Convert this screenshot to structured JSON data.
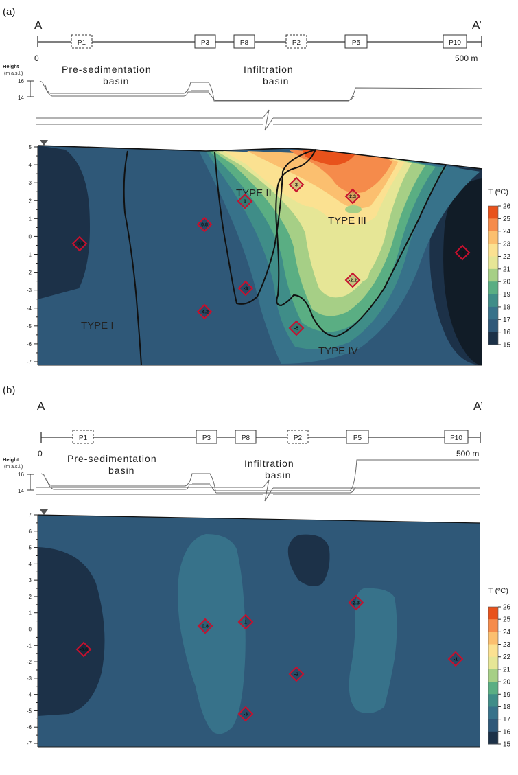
{
  "colors": {
    "c15": "#111c27",
    "c16": "#1c3148",
    "c17": "#2f5878",
    "c18": "#37728a",
    "c19": "#3f8d88",
    "c20": "#5aae83",
    "c21": "#a6cf86",
    "c22": "#e6e696",
    "c23": "#fbe191",
    "c24": "#fbbf6f",
    "c25": "#f58b4b",
    "c26": "#e8521b",
    "outline": "#111111",
    "diamond": "#c8102e"
  },
  "panels": [
    {
      "label": "(a)",
      "start": "A",
      "end": "A’",
      "origin_label": "0",
      "distance_label": "500 m",
      "height_title": "Height",
      "height_units": "(m a.s.l.)",
      "height_ticks": [
        "16",
        "14"
      ],
      "basin_left_line1": "Pre-sedimentation",
      "basin_left_line2": "basin",
      "basin_right_line1": "Infiltration",
      "basin_right_line2": "basin",
      "wells": [
        {
          "name": "P1",
          "dashed": true
        },
        {
          "name": "P3",
          "dashed": false
        },
        {
          "name": "P8",
          "dashed": false
        },
        {
          "name": "P2",
          "dashed": true
        },
        {
          "name": "P5",
          "dashed": false
        },
        {
          "name": "P10",
          "dashed": false
        }
      ],
      "y_ticks": [
        "5",
        "4",
        "3",
        "2",
        "1",
        "0",
        "-1",
        "-2",
        "-3",
        "-4",
        "-5",
        "-6",
        "-7"
      ],
      "zones": [
        "TYPE I",
        "TYPE II",
        "TYPE III",
        "TYPE IV"
      ],
      "markers": [
        "-0.6",
        "0.8",
        "1",
        "3",
        "2.3",
        "-1",
        "-3",
        "-2.2",
        "-4.2",
        "-5"
      ],
      "legend_title": "T (ºC)",
      "legend_ticks": [
        "26",
        "25",
        "24",
        "23",
        "22",
        "21",
        "20",
        "19",
        "18",
        "17",
        "16",
        "15"
      ]
    },
    {
      "label": "(b)",
      "start": "A",
      "end": "A’",
      "origin_label": "0",
      "distance_label": "500 m",
      "height_title": "Height",
      "height_units": "(m a.s.l.)",
      "height_ticks": [
        "16",
        "14"
      ],
      "basin_left_line1": "Pre-sedimentation",
      "basin_left_line2": "basin",
      "basin_right_line1": "Infiltration",
      "basin_right_line2": "basin",
      "wells": [
        {
          "name": "P1",
          "dashed": true
        },
        {
          "name": "P3",
          "dashed": false
        },
        {
          "name": "P8",
          "dashed": false
        },
        {
          "name": "P2",
          "dashed": true
        },
        {
          "name": "P5",
          "dashed": false
        },
        {
          "name": "P10",
          "dashed": false
        }
      ],
      "y_ticks": [
        "7",
        "6",
        "5",
        "4",
        "3",
        "2",
        "1",
        "0",
        "-1",
        "-2",
        "-3",
        "-4",
        "-5",
        "-6",
        "-7"
      ],
      "markers": [
        "-0.6",
        "0.8",
        "1",
        "2.3",
        "-1",
        "-2",
        "-3"
      ],
      "legend_title": "T (ºC)",
      "legend_ticks": [
        "26",
        "25",
        "24",
        "23",
        "22",
        "21",
        "20",
        "19",
        "18",
        "17",
        "16",
        "15"
      ]
    }
  ]
}
